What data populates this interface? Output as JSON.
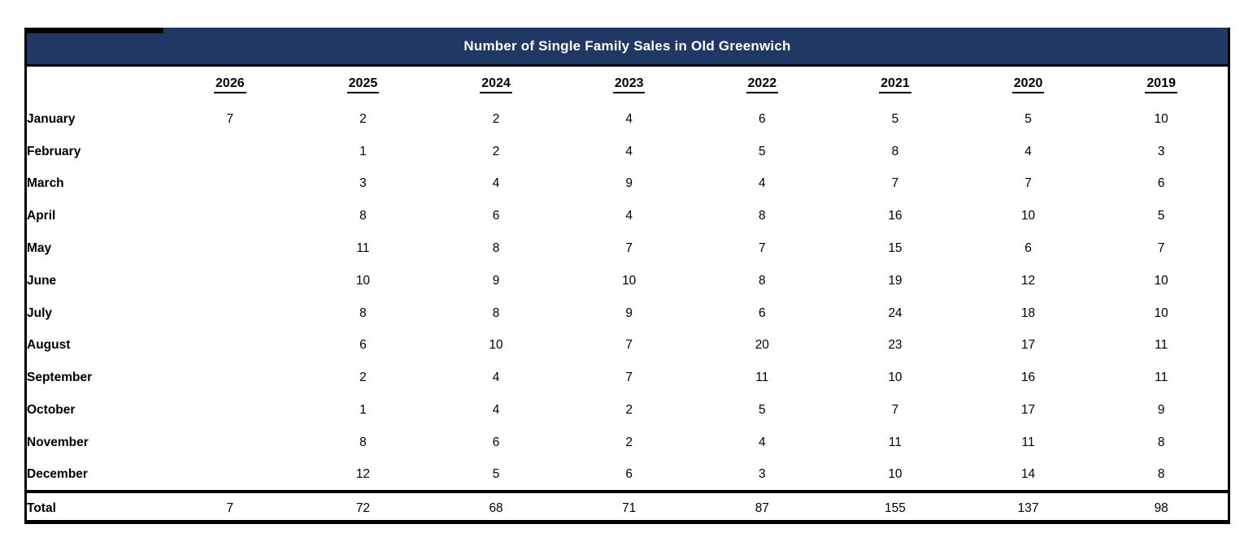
{
  "table": {
    "title": "Number of Single Family Sales in Old Greenwich"
  },
  "colors": {
    "header_bg": "#1f3864",
    "header_text": "#ffffff",
    "border": "#000000",
    "body_bg": "#ffffff"
  },
  "chart_data": {
    "type": "table",
    "title": "Number of Single Family Sales in Old Greenwich",
    "columns": [
      "2026",
      "2025",
      "2024",
      "2023",
      "2022",
      "2021",
      "2020",
      "2019"
    ],
    "rows": [
      {
        "label": "January",
        "values": [
          "7",
          "2",
          "2",
          "4",
          "6",
          "5",
          "5",
          "10"
        ]
      },
      {
        "label": "February",
        "values": [
          "",
          "1",
          "2",
          "4",
          "5",
          "8",
          "4",
          "3"
        ]
      },
      {
        "label": "March",
        "values": [
          "",
          "3",
          "4",
          "9",
          "4",
          "7",
          "7",
          "6"
        ]
      },
      {
        "label": "April",
        "values": [
          "",
          "8",
          "6",
          "4",
          "8",
          "16",
          "10",
          "5"
        ]
      },
      {
        "label": "May",
        "values": [
          "",
          "11",
          "8",
          "7",
          "7",
          "15",
          "6",
          "7"
        ]
      },
      {
        "label": "June",
        "values": [
          "",
          "10",
          "9",
          "10",
          "8",
          "19",
          "12",
          "10"
        ]
      },
      {
        "label": "July",
        "values": [
          "",
          "8",
          "8",
          "9",
          "6",
          "24",
          "18",
          "10"
        ]
      },
      {
        "label": "August",
        "values": [
          "",
          "6",
          "10",
          "7",
          "20",
          "23",
          "17",
          "11"
        ]
      },
      {
        "label": "September",
        "values": [
          "",
          "2",
          "4",
          "7",
          "11",
          "10",
          "16",
          "11"
        ]
      },
      {
        "label": "October",
        "values": [
          "",
          "1",
          "4",
          "2",
          "5",
          "7",
          "17",
          "9"
        ]
      },
      {
        "label": "November",
        "values": [
          "",
          "8",
          "6",
          "2",
          "4",
          "11",
          "11",
          "8"
        ]
      },
      {
        "label": "December",
        "values": [
          "",
          "12",
          "5",
          "6",
          "3",
          "10",
          "14",
          "8"
        ]
      }
    ],
    "total": {
      "label": "Total",
      "values": [
        "7",
        "72",
        "68",
        "71",
        "87",
        "155",
        "137",
        "98"
      ]
    },
    "layout": {
      "legend": false,
      "grid": false
    }
  }
}
